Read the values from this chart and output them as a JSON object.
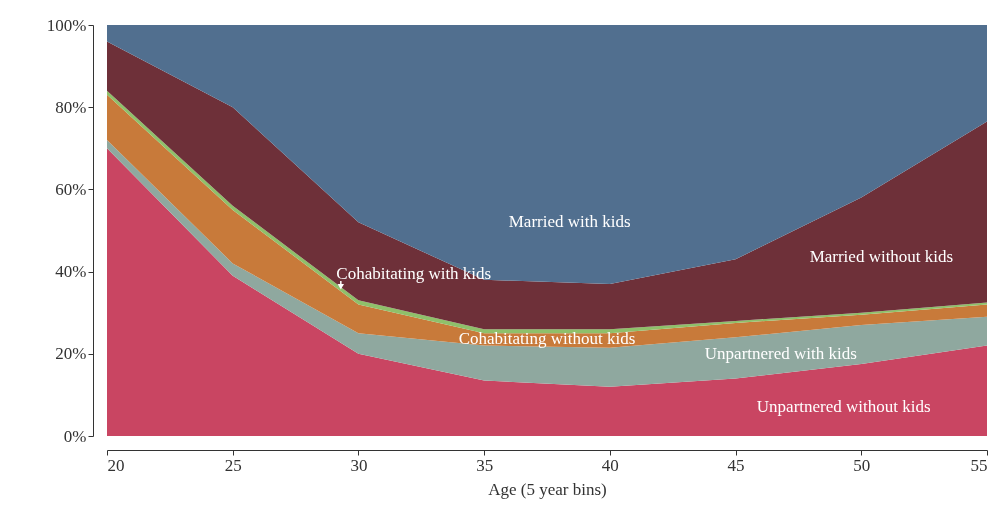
{
  "chart_data": {
    "type": "area",
    "stacked": true,
    "xlabel": "Age (5 year bins)",
    "x": [
      20,
      25,
      30,
      35,
      40,
      45,
      50,
      55
    ],
    "xlim": [
      20,
      55
    ],
    "xticks": [
      20,
      25,
      30,
      35,
      40,
      45,
      50,
      55
    ],
    "ylim": [
      0,
      100
    ],
    "yticks": [
      {
        "value": 0,
        "label": "0%"
      },
      {
        "value": 20,
        "label": "20%"
      },
      {
        "value": 40,
        "label": "40%"
      },
      {
        "value": 60,
        "label": "60%"
      },
      {
        "value": 80,
        "label": "80%"
      },
      {
        "value": 100,
        "label": "100%"
      }
    ],
    "grid": false,
    "legend": false,
    "series": [
      {
        "name": "Unpartnered without kids",
        "color": "#c94562",
        "values": [
          70,
          39,
          20,
          13.5,
          12,
          14,
          17.5,
          22
        ]
      },
      {
        "name": "Unpartnered with kids",
        "color": "#8fa89f",
        "values": [
          2,
          3,
          5,
          8.5,
          9.5,
          10,
          9.5,
          7
        ]
      },
      {
        "name": "Cohabitating without kids",
        "color": "#c87a3a",
        "values": [
          11,
          13,
          7,
          3,
          3.5,
          3.5,
          2.5,
          3
        ]
      },
      {
        "name": "Cohabitating with kids",
        "color": "#8fc06a",
        "values": [
          1,
          1,
          1,
          1,
          1,
          0.5,
          0.5,
          0.5
        ]
      },
      {
        "name": "Married without kids",
        "color": "#6e3039",
        "values": [
          12,
          24,
          19,
          12,
          11,
          15,
          28,
          44
        ]
      },
      {
        "name": "Married with kids",
        "color": "#516f8f",
        "values": [
          4,
          20,
          48,
          62,
          63,
          57,
          42,
          23.5
        ]
      }
    ]
  }
}
